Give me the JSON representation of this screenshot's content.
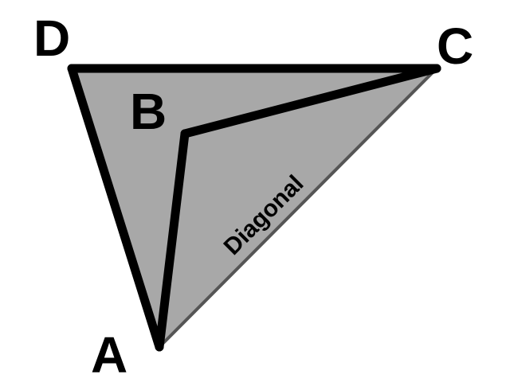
{
  "vertices": {
    "a": "A",
    "b": "B",
    "c": "C",
    "d": "D"
  },
  "diagonal_label": "Diagonal",
  "colors": {
    "fill": "#a8a8a8",
    "stroke": "#000000",
    "diagonal_stroke": "#555555",
    "background": "#ffffff"
  }
}
